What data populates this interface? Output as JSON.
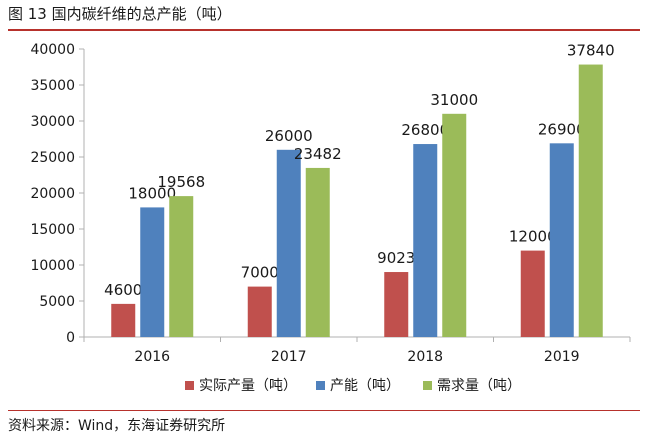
{
  "title": "图 13 国内碳纤维的总产能（吨）",
  "source": "资料来源：Wind，东海证券研究所",
  "colors": {
    "accent_rule": "#b7312c",
    "axis": "#b0b0b0"
  },
  "chart_data": {
    "type": "bar",
    "categories": [
      "2016",
      "2017",
      "2018",
      "2019"
    ],
    "series": [
      {
        "name": "实际产量（吨）",
        "color": "#c0504d",
        "values": [
          4600,
          7000,
          9023,
          12000
        ]
      },
      {
        "name": "产能（吨）",
        "color": "#4f81bd",
        "values": [
          18000,
          26000,
          26800,
          26900
        ]
      },
      {
        "name": "需求量（吨）",
        "color": "#9bbb59",
        "values": [
          19568,
          23482,
          31000,
          37840
        ]
      }
    ],
    "yticks": [
      0,
      5000,
      10000,
      15000,
      20000,
      25000,
      30000,
      35000,
      40000
    ],
    "ylim": [
      0,
      40000
    ],
    "grid": false,
    "legend_position": "bottom",
    "data_labels": true
  }
}
